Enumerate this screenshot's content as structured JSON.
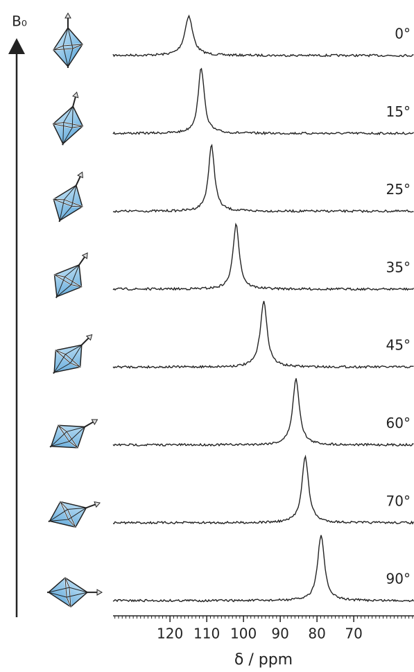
{
  "chart_data": {
    "type": "stacked-spectra",
    "field_label": "B₀",
    "xlabel": "δ / ppm",
    "xlim": [
      135.5,
      53.6
    ],
    "xticks": [
      120,
      110,
      100,
      90,
      80,
      70
    ],
    "color": "#222222",
    "icon_color": "#8cc4ea",
    "series": [
      {
        "name": "0°",
        "angle": 0,
        "peak": 114.9,
        "width": 2.6,
        "intensity": 0.6
      },
      {
        "name": "15°",
        "angle": 15,
        "peak": 111.5,
        "width": 2.0,
        "intensity": 1
      },
      {
        "name": "25°",
        "angle": 25,
        "peak": 108.7,
        "width": 2.0,
        "intensity": 1
      },
      {
        "name": "35°",
        "angle": 35,
        "peak": 102.0,
        "width": 2.0,
        "intensity": 1
      },
      {
        "name": "45°",
        "angle": 45,
        "peak": 94.5,
        "width": 2.2,
        "intensity": 1
      },
      {
        "name": "60°",
        "angle": 60,
        "peak": 85.7,
        "width": 2.2,
        "intensity": 1
      },
      {
        "name": "70°",
        "angle": 70,
        "peak": 83.2,
        "width": 2.2,
        "intensity": 1
      },
      {
        "name": "90°",
        "angle": 90,
        "peak": 78.9,
        "width": 2.2,
        "intensity": 1
      }
    ]
  }
}
